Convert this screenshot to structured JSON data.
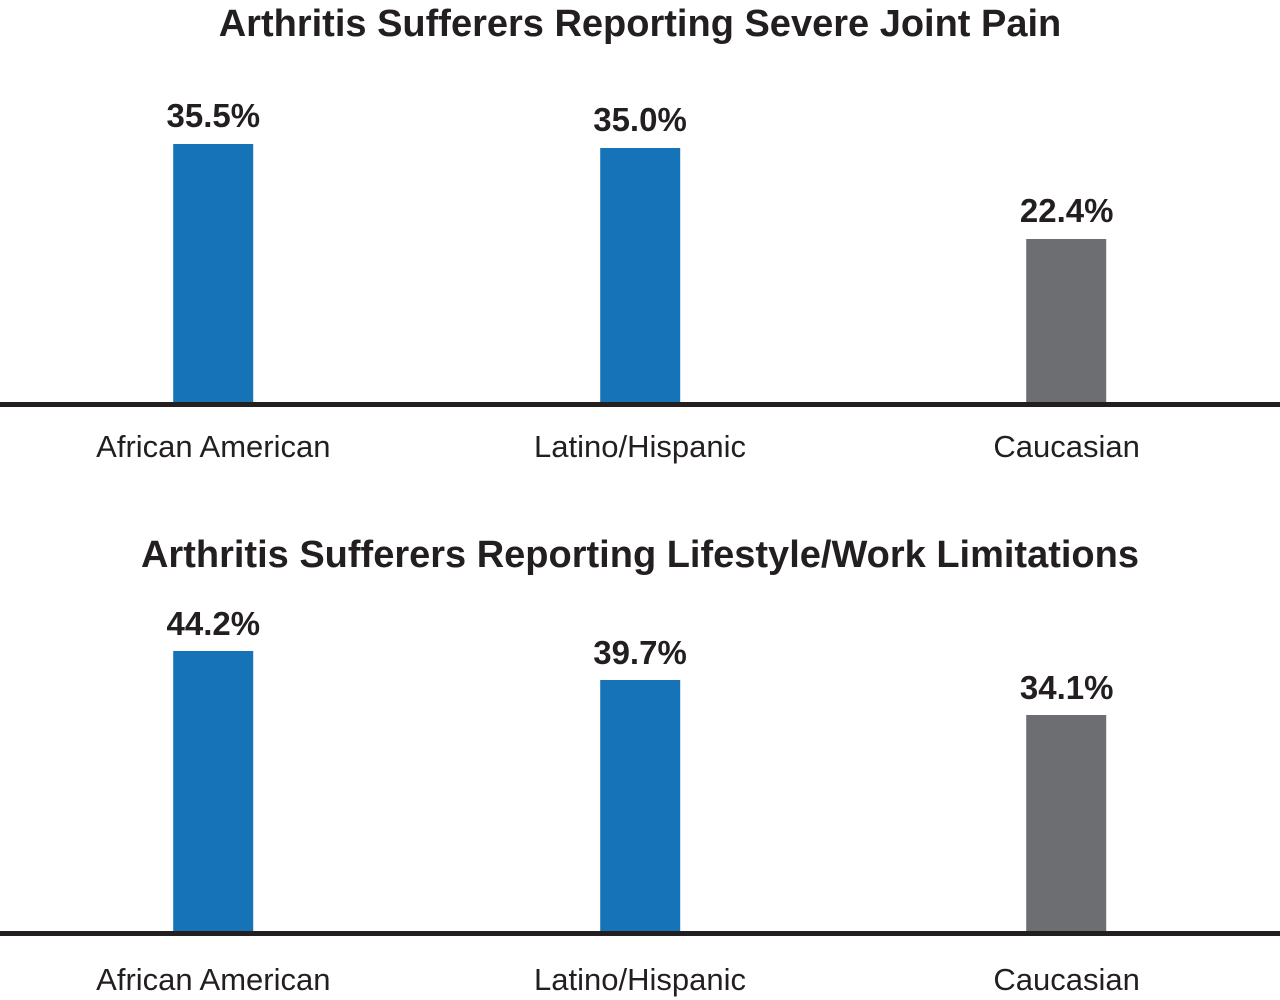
{
  "colors": {
    "bar_blue": "#1673B8",
    "bar_gray": "#6D6E71",
    "text": "#231F20",
    "axis": "#231F20",
    "background": "#FFFFFF"
  },
  "chart_data": [
    {
      "type": "bar",
      "title": "Arthritis Sufferers Reporting Severe Joint Pain",
      "categories": [
        "African American",
        "Latino/Hispanic",
        "Caucasian"
      ],
      "values": [
        35.5,
        35.0,
        22.4
      ],
      "value_labels": [
        "35.5%",
        "35.0%",
        "22.4%"
      ],
      "unit": "percent",
      "bar_colors": [
        "#1673B8",
        "#1673B8",
        "#6D6E71"
      ],
      "legend": "none",
      "gridlines": false,
      "y_axis_ticks": "none",
      "data_label_position": "above-bar"
    },
    {
      "type": "bar",
      "title": "Arthritis Sufferers Reporting Lifestyle/Work Limitations",
      "categories": [
        "African American",
        "Latino/Hispanic",
        "Caucasian"
      ],
      "values": [
        44.2,
        39.7,
        34.1
      ],
      "value_labels": [
        "44.2%",
        "39.7%",
        "34.1%"
      ],
      "unit": "percent",
      "bar_colors": [
        "#1673B8",
        "#1673B8",
        "#6D6E71"
      ],
      "legend": "none",
      "gridlines": false,
      "y_axis_ticks": "none",
      "data_label_position": "above-bar"
    }
  ]
}
